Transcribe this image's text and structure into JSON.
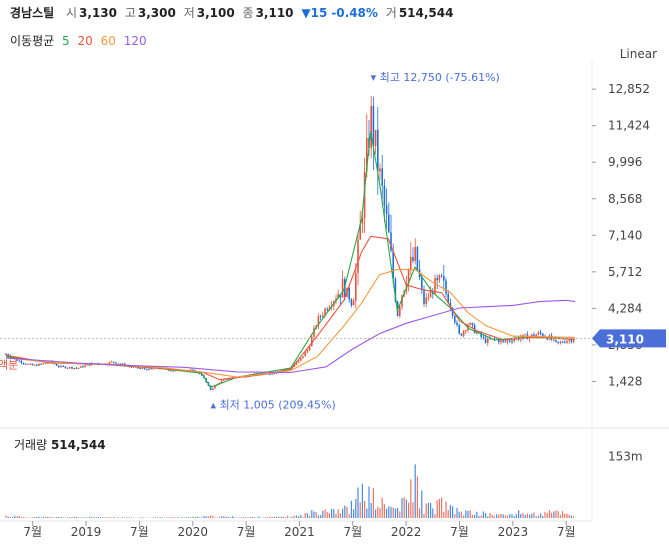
{
  "header": {
    "name": "경남스틸",
    "open_label": "시",
    "open": "3,130",
    "high_label": "고",
    "high": "3,300",
    "low_label": "저",
    "low": "3,100",
    "close_label": "종",
    "close": "3,110",
    "change": "▼15",
    "change_pct": "-0.48%",
    "volume_label": "거",
    "volume": "514,544"
  },
  "moving_average": {
    "label": "이동평균",
    "periods": [
      {
        "value": "5",
        "color": "#2aa84a"
      },
      {
        "value": "20",
        "color": "#e8533b"
      },
      {
        "value": "60",
        "color": "#f29a3c"
      },
      {
        "value": "120",
        "color": "#9a5ce6"
      }
    ]
  },
  "scale_mode": "Linear",
  "volume_panel": {
    "label": "거래량",
    "value": "514,544",
    "axis_label": "153m"
  },
  "left_badge": "액분",
  "colors": {
    "up": "#e8533b",
    "down": "#1e6fd9",
    "current_bg": "#4a6fd9",
    "annotation": "#4a6fd9"
  },
  "chart_data": {
    "type": "candlestick",
    "title": "경남스틸",
    "yticks": [
      12852,
      11424,
      9996,
      8568,
      7140,
      5712,
      4284,
      2856,
      1428
    ],
    "ytick_labels": [
      "12,852",
      "11,424",
      "9,996",
      "8,568",
      "7,140",
      "5,712",
      "4,284",
      "2,856",
      "1,428"
    ],
    "ylim": [
      0,
      13600
    ],
    "xlim": [
      "2018-04",
      "2023-09"
    ],
    "xticks": [
      {
        "label": "7월",
        "date": "2018-07"
      },
      {
        "label": "2019",
        "date": "2019-01"
      },
      {
        "label": "7월",
        "date": "2019-07"
      },
      {
        "label": "2020",
        "date": "2020-01"
      },
      {
        "label": "7월",
        "date": "2020-07"
      },
      {
        "label": "2021",
        "date": "2021-01"
      },
      {
        "label": "7월",
        "date": "2021-07"
      },
      {
        "label": "2022",
        "date": "2022-01"
      },
      {
        "label": "7월",
        "date": "2022-07"
      },
      {
        "label": "2023",
        "date": "2023-01"
      },
      {
        "label": "7월",
        "date": "2023-07"
      }
    ],
    "current_price": 3110,
    "current_price_label": "3,110",
    "max_annotation": {
      "date": "2021-09",
      "value": 12750,
      "label": "최고",
      "text": "12,750 (-75.61%)"
    },
    "min_annotation": {
      "date": "2020-03",
      "value": 1005,
      "label": "최저",
      "text": "1,005 (209.45%)"
    },
    "price_path": [
      [
        "2018-04",
        2500
      ],
      [
        "2018-05",
        2300
      ],
      [
        "2018-06",
        2150
      ],
      [
        "2018-07",
        2050
      ],
      [
        "2018-08",
        2100
      ],
      [
        "2018-09",
        2200
      ],
      [
        "2018-10",
        2000
      ],
      [
        "2018-11",
        1980
      ],
      [
        "2018-12",
        1950
      ],
      [
        "2019-01",
        2050
      ],
      [
        "2019-02",
        2150
      ],
      [
        "2019-03",
        2100
      ],
      [
        "2019-04",
        2200
      ],
      [
        "2019-05",
        2100
      ],
      [
        "2019-06",
        2000
      ],
      [
        "2019-07",
        1950
      ],
      [
        "2019-08",
        1900
      ],
      [
        "2019-09",
        1950
      ],
      [
        "2019-10",
        1900
      ],
      [
        "2019-11",
        1850
      ],
      [
        "2019-12",
        1900
      ],
      [
        "2020-01",
        1850
      ],
      [
        "2020-02",
        1700
      ],
      [
        "2020-03",
        1100
      ],
      [
        "2020-04",
        1400
      ],
      [
        "2020-05",
        1550
      ],
      [
        "2020-06",
        1600
      ],
      [
        "2020-07",
        1650
      ],
      [
        "2020-08",
        1700
      ],
      [
        "2020-09",
        1720
      ],
      [
        "2020-10",
        1750
      ],
      [
        "2020-11",
        1850
      ],
      [
        "2020-12",
        1950
      ],
      [
        "2021-01",
        2250
      ],
      [
        "2021-02",
        2700
      ],
      [
        "2021-03",
        3800
      ],
      [
        "2021-04",
        4300
      ],
      [
        "2021-05",
        4700
      ],
      [
        "2021-06",
        5200
      ],
      [
        "2021-07",
        4400
      ],
      [
        "2021-08",
        8000
      ],
      [
        "2021-09",
        11800
      ],
      [
        "2021-10",
        9500
      ],
      [
        "2021-11",
        7200
      ],
      [
        "2021-12",
        4000
      ],
      [
        "2022-01",
        5600
      ],
      [
        "2022-02",
        6300
      ],
      [
        "2022-03",
        4500
      ],
      [
        "2022-04",
        5000
      ],
      [
        "2022-05",
        5300
      ],
      [
        "2022-06",
        4400
      ],
      [
        "2022-07",
        3200
      ],
      [
        "2022-08",
        3700
      ],
      [
        "2022-09",
        3300
      ],
      [
        "2022-10",
        3000
      ],
      [
        "2022-11",
        3100
      ],
      [
        "2022-12",
        2950
      ],
      [
        "2023-01",
        3100
      ],
      [
        "2023-02",
        3150
      ],
      [
        "2023-03",
        3200
      ],
      [
        "2023-04",
        3300
      ],
      [
        "2023-05",
        3150
      ],
      [
        "2023-06",
        2900
      ],
      [
        "2023-07",
        3050
      ],
      [
        "2023-08",
        3110
      ]
    ],
    "series": [
      {
        "name": "5",
        "color": "#2aa84a",
        "values": [
          [
            "2018-04",
            2400
          ],
          [
            "2018-09",
            2150
          ],
          [
            "2019-03",
            2100
          ],
          [
            "2019-09",
            1950
          ],
          [
            "2020-02",
            1750
          ],
          [
            "2020-03",
            1200
          ],
          [
            "2020-06",
            1600
          ],
          [
            "2020-12",
            1950
          ],
          [
            "2021-03",
            3600
          ],
          [
            "2021-06",
            5000
          ],
          [
            "2021-08",
            7800
          ],
          [
            "2021-09",
            11200
          ],
          [
            "2021-10",
            9200
          ],
          [
            "2021-12",
            4200
          ],
          [
            "2022-02",
            5900
          ],
          [
            "2022-04",
            4900
          ],
          [
            "2022-06",
            4300
          ],
          [
            "2022-08",
            3500
          ],
          [
            "2022-11",
            3050
          ],
          [
            "2023-02",
            3150
          ],
          [
            "2023-05",
            3150
          ],
          [
            "2023-08",
            3080
          ]
        ]
      },
      {
        "name": "20",
        "color": "#e8533b",
        "values": [
          [
            "2018-04",
            2450
          ],
          [
            "2018-09",
            2150
          ],
          [
            "2019-03",
            2100
          ],
          [
            "2019-09",
            1950
          ],
          [
            "2020-02",
            1800
          ],
          [
            "2020-04",
            1500
          ],
          [
            "2020-09",
            1700
          ],
          [
            "2020-12",
            1900
          ],
          [
            "2021-03",
            3200
          ],
          [
            "2021-06",
            4600
          ],
          [
            "2021-08",
            6500
          ],
          [
            "2021-09",
            7100
          ],
          [
            "2021-11",
            7000
          ],
          [
            "2022-01",
            5200
          ],
          [
            "2022-03",
            5000
          ],
          [
            "2022-05",
            4900
          ],
          [
            "2022-07",
            3800
          ],
          [
            "2022-09",
            3400
          ],
          [
            "2022-12",
            3050
          ],
          [
            "2023-03",
            3150
          ],
          [
            "2023-08",
            3080
          ]
        ]
      },
      {
        "name": "60",
        "color": "#f29a3c",
        "values": [
          [
            "2018-04",
            2350
          ],
          [
            "2018-10",
            2150
          ],
          [
            "2019-04",
            2100
          ],
          [
            "2019-10",
            1950
          ],
          [
            "2020-03",
            1750
          ],
          [
            "2020-06",
            1600
          ],
          [
            "2020-12",
            1850
          ],
          [
            "2021-03",
            2400
          ],
          [
            "2021-06",
            3600
          ],
          [
            "2021-08",
            4500
          ],
          [
            "2021-10",
            5600
          ],
          [
            "2021-12",
            5800
          ],
          [
            "2022-02",
            5800
          ],
          [
            "2022-04",
            5300
          ],
          [
            "2022-06",
            4900
          ],
          [
            "2022-08",
            4100
          ],
          [
            "2022-10",
            3600
          ],
          [
            "2023-01",
            3200
          ],
          [
            "2023-08",
            3150
          ]
        ]
      },
      {
        "name": "120",
        "color": "#9a5ce6",
        "values": [
          [
            "2018-04",
            2350
          ],
          [
            "2018-12",
            2150
          ],
          [
            "2019-06",
            2050
          ],
          [
            "2019-12",
            1980
          ],
          [
            "2020-06",
            1800
          ],
          [
            "2020-12",
            1780
          ],
          [
            "2021-04",
            2000
          ],
          [
            "2021-07",
            2700
          ],
          [
            "2021-10",
            3300
          ],
          [
            "2022-01",
            3700
          ],
          [
            "2022-04",
            4000
          ],
          [
            "2022-07",
            4300
          ],
          [
            "2022-10",
            4350
          ],
          [
            "2023-01",
            4400
          ],
          [
            "2023-04",
            4550
          ],
          [
            "2023-07",
            4600
          ],
          [
            "2023-08",
            4550
          ]
        ]
      }
    ],
    "volume": [
      [
        "2018-04",
        8
      ],
      [
        "2018-06",
        4
      ],
      [
        "2018-09",
        3
      ],
      [
        "2019-01",
        3
      ],
      [
        "2019-05",
        2
      ],
      [
        "2019-09",
        2
      ],
      [
        "2020-01",
        3
      ],
      [
        "2020-03",
        6
      ],
      [
        "2020-07",
        3
      ],
      [
        "2020-11",
        4
      ],
      [
        "2021-01",
        8
      ],
      [
        "2021-03",
        25
      ],
      [
        "2021-04",
        40
      ],
      [
        "2021-05",
        35
      ],
      [
        "2021-06",
        30
      ],
      [
        "2021-07",
        45
      ],
      [
        "2021-08",
        95
      ],
      [
        "2021-09",
        80
      ],
      [
        "2021-10",
        55
      ],
      [
        "2021-11",
        40
      ],
      [
        "2021-12",
        35
      ],
      [
        "2022-01",
        60
      ],
      [
        "2022-02",
        150
      ],
      [
        "2022-03",
        45
      ],
      [
        "2022-04",
        35
      ],
      [
        "2022-05",
        60
      ],
      [
        "2022-06",
        30
      ],
      [
        "2022-07",
        25
      ],
      [
        "2022-08",
        20
      ],
      [
        "2022-10",
        15
      ],
      [
        "2022-12",
        10
      ],
      [
        "2023-02",
        20
      ],
      [
        "2023-04",
        12
      ],
      [
        "2023-06",
        25
      ],
      [
        "2023-08",
        8
      ]
    ]
  }
}
